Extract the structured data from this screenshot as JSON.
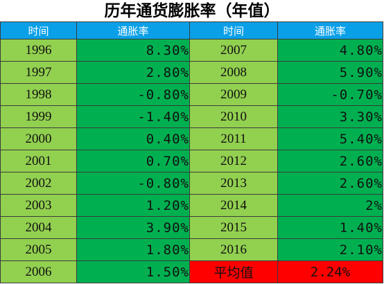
{
  "title": "历年通货膨胀率（年值）",
  "headers": [
    "时间",
    "通胀率",
    "时间",
    "通胀率"
  ],
  "rows": [
    {
      "year_a": "1996",
      "rate_a": "8.30%",
      "year_b": "2007",
      "rate_b": "4.80%"
    },
    {
      "year_a": "1997",
      "rate_a": "2.80%",
      "year_b": "2008",
      "rate_b": "5.90%"
    },
    {
      "year_a": "1998",
      "rate_a": "-0.80%",
      "year_b": "2009",
      "rate_b": "-0.70%"
    },
    {
      "year_a": "1999",
      "rate_a": "-1.40%",
      "year_b": "2010",
      "rate_b": "3.30%"
    },
    {
      "year_a": "2000",
      "rate_a": "0.40%",
      "year_b": "2011",
      "rate_b": "5.40%"
    },
    {
      "year_a": "2001",
      "rate_a": "0.70%",
      "year_b": "2012",
      "rate_b": "2.60%"
    },
    {
      "year_a": "2002",
      "rate_a": "-0.80%",
      "year_b": "2013",
      "rate_b": "2.60%"
    },
    {
      "year_a": "2003",
      "rate_a": "1.20%",
      "year_b": "2014",
      "rate_b": "2%"
    },
    {
      "year_a": "2004",
      "rate_a": "3.90%",
      "year_b": "2015",
      "rate_b": "1.40%"
    },
    {
      "year_a": "2005",
      "rate_a": "1.80%",
      "year_b": "2016",
      "rate_b": "2.10%"
    }
  ],
  "last_row": {
    "year_a": "2006",
    "rate_a": "1.50%",
    "avg_label": "平均值",
    "avg_value": "2.24%"
  },
  "colors": {
    "header": "#0aa0e8",
    "year_cell": "#92d050",
    "rate_cell": "#00b050",
    "average_cell": "#ff0000"
  }
}
